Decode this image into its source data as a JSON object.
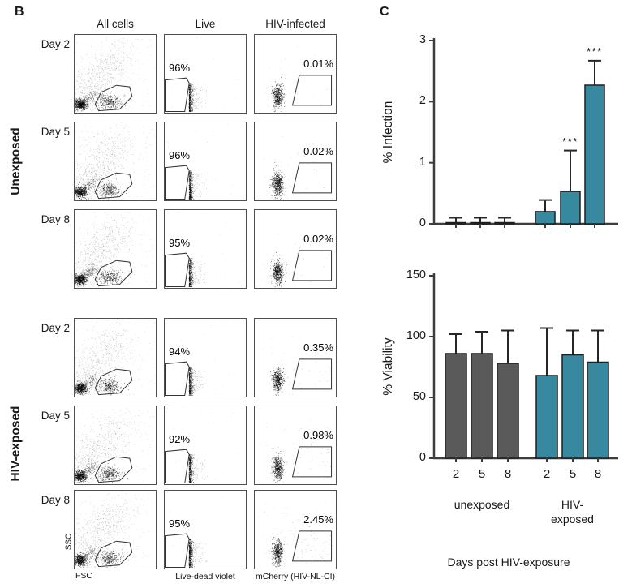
{
  "panel_b": {
    "label": "B",
    "col_headers": [
      "All cells",
      "Live",
      "HIV-infected"
    ],
    "group_labels": [
      "Unexposed",
      "HIV-exposed"
    ],
    "rows": [
      {
        "group": "Unexposed",
        "day": "Day 2",
        "live_pct": "96%",
        "infected_pct": "0.01%"
      },
      {
        "group": "Unexposed",
        "day": "Day 5",
        "live_pct": "96%",
        "infected_pct": "0.02%"
      },
      {
        "group": "Unexposed",
        "day": "Day 8",
        "live_pct": "95%",
        "infected_pct": "0.02%"
      },
      {
        "group": "HIV-exposed",
        "day": "Day 2",
        "live_pct": "94%",
        "infected_pct": "0.35%"
      },
      {
        "group": "HIV-exposed",
        "day": "Day 5",
        "live_pct": "92%",
        "infected_pct": "0.98%"
      },
      {
        "group": "HIV-exposed",
        "day": "Day 8",
        "live_pct": "95%",
        "infected_pct": "2.45%"
      }
    ],
    "axis_labels": {
      "ssc": "SSC",
      "fsc": "FSC",
      "live": "Live-dead violet",
      "infected": "mCherry (HIV-NL-CI)"
    }
  },
  "panel_c": {
    "label": "C"
  },
  "chart_data": [
    {
      "type": "bar",
      "title": "",
      "ylabel": "% Infection",
      "ylim": [
        0,
        3
      ],
      "yticks": [
        3,
        2,
        1,
        0
      ],
      "grid": false,
      "categories": [
        "2",
        "5",
        "8",
        "2",
        "5",
        "8"
      ],
      "series": [
        {
          "name": "% Infection",
          "values": [
            0.02,
            0.02,
            0.02,
            0.2,
            0.53,
            2.27
          ]
        }
      ],
      "error_top": [
        0.1,
        0.1,
        0.1,
        0.39,
        1.2,
        2.67
      ],
      "significance": [
        "",
        "",
        "",
        "",
        "***",
        "***"
      ],
      "bar_colors": [
        "#5a5a5a",
        "#5a5a5a",
        "#5a5a5a",
        "#38889f",
        "#38889f",
        "#38889f"
      ],
      "show_x_tick_labels": false
    },
    {
      "type": "bar",
      "title": "",
      "ylabel": "% Viability",
      "ylim": [
        0,
        150
      ],
      "yticks": [
        150,
        100,
        50,
        0
      ],
      "grid": false,
      "categories": [
        "2",
        "5",
        "8",
        "2",
        "5",
        "8"
      ],
      "series": [
        {
          "name": "% Viability",
          "values": [
            86,
            86,
            78,
            68,
            85,
            79
          ]
        }
      ],
      "error_top": [
        102,
        104,
        105,
        107,
        105,
        105
      ],
      "significance": [
        "",
        "",
        "",
        "",
        "",
        ""
      ],
      "bar_colors": [
        "#5a5a5a",
        "#5a5a5a",
        "#5a5a5a",
        "#38889f",
        "#38889f",
        "#38889f"
      ],
      "show_x_tick_labels": true,
      "group_labels": [
        "unexposed",
        "HIV-\nexposed"
      ],
      "xlabel": "Days post HIV-exposure"
    }
  ],
  "colors": {
    "unexposed_bar": "#5a5a5a",
    "hiv_exposed_bar": "#38889f",
    "axis": "#3d3d3d",
    "plot_border": "#4f4f4f"
  }
}
